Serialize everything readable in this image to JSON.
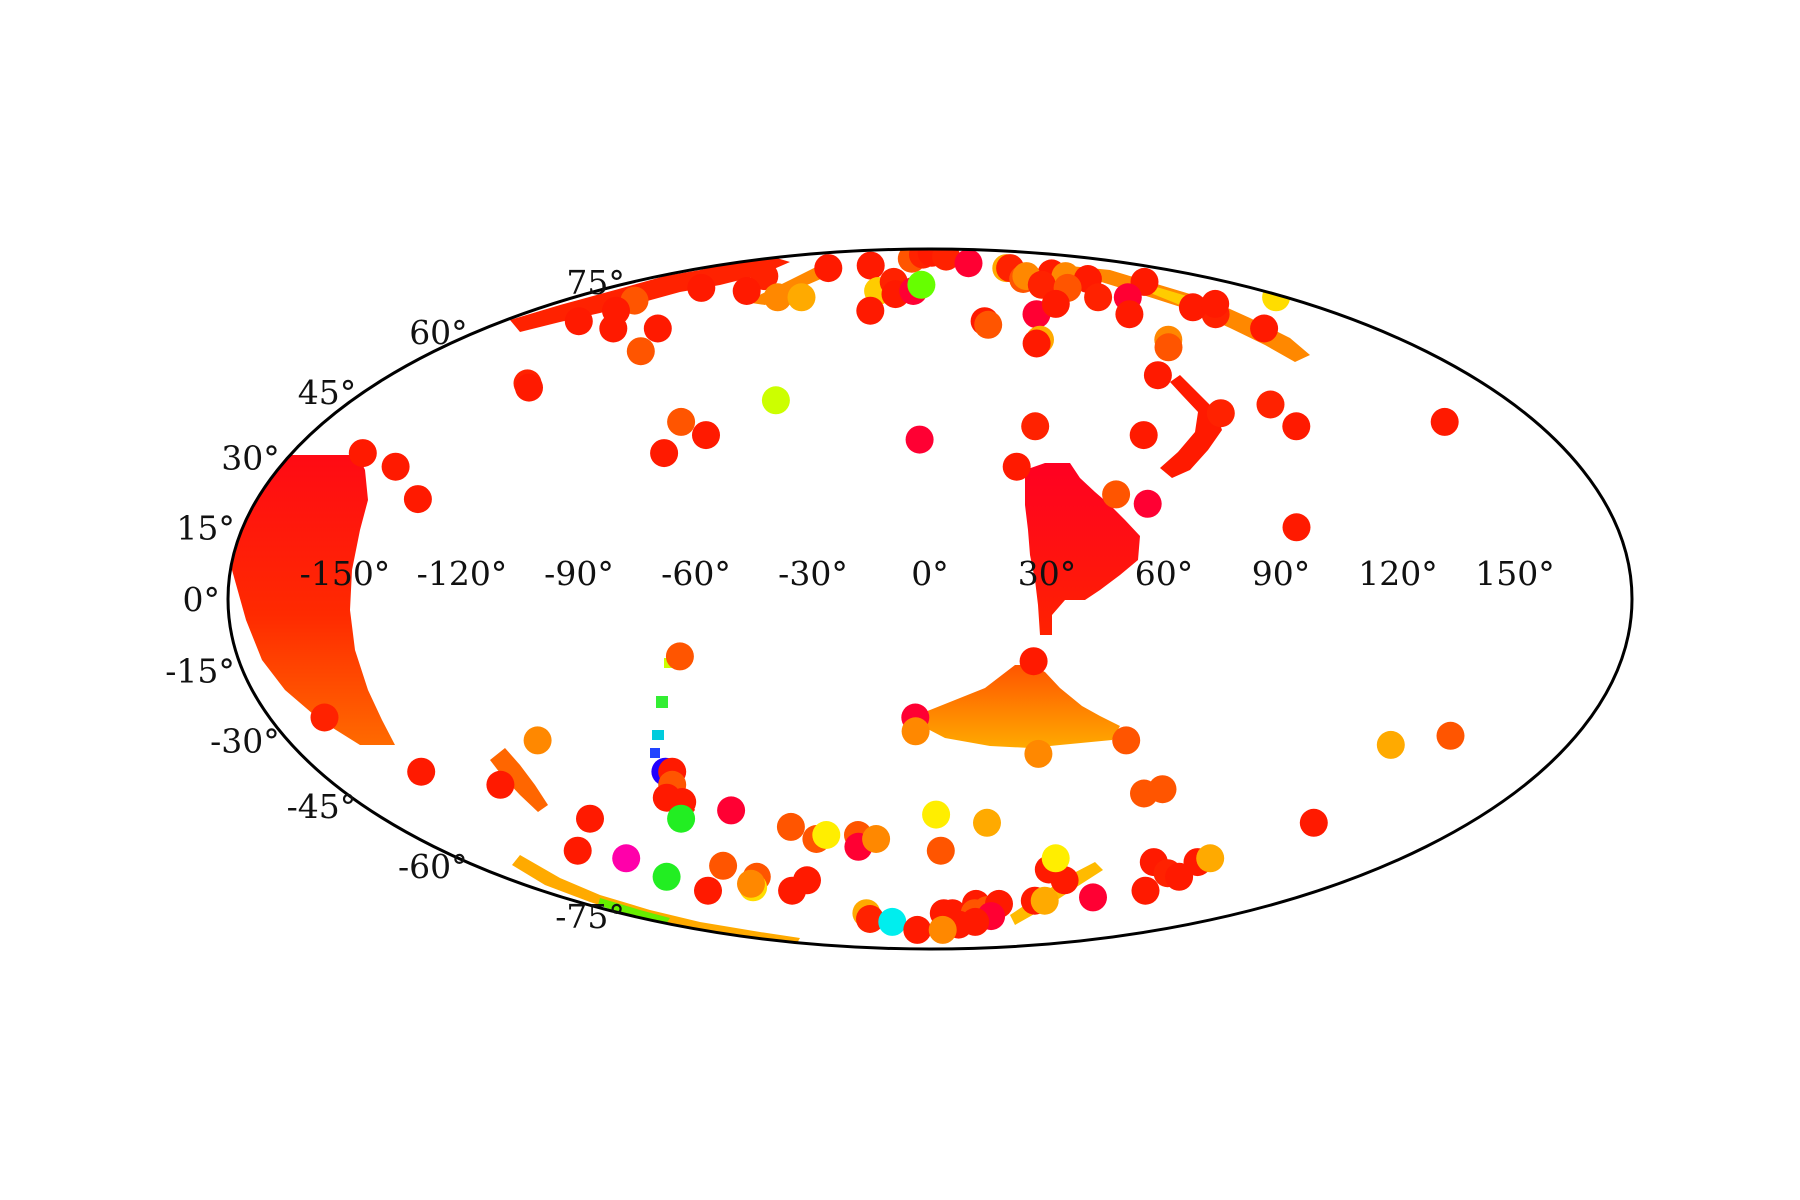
{
  "chart_data": {
    "type": "scatter",
    "projection": "mollweide",
    "title": "",
    "lon_ticks": [
      "-150°",
      "-120°",
      "-90°",
      "-60°",
      "-30°",
      "0°",
      "30°",
      "60°",
      "90°",
      "120°",
      "150°"
    ],
    "lat_ticks": [
      "-75°",
      "-60°",
      "-45°",
      "-30°",
      "-15°",
      "0°",
      "15°",
      "30°",
      "45°",
      "60°",
      "75°"
    ],
    "points": [
      {
        "lon": -145,
        "lat": 69,
        "color": "#ff5500"
      },
      {
        "lon": -142,
        "lat": 66,
        "color": "#ff1a00"
      },
      {
        "lon": -128,
        "lat": 73,
        "color": "#ff1a00"
      },
      {
        "lon": -110,
        "lat": 77,
        "color": "#ff2200"
      },
      {
        "lon": -80,
        "lat": 80,
        "color": "#ff1a00"
      },
      {
        "lon": -50,
        "lat": 81,
        "color": "#ff1a00"
      },
      {
        "lon": -20,
        "lat": 84,
        "color": "#ff5500"
      },
      {
        "lon": -10,
        "lat": 86,
        "color": "#ff2200"
      },
      {
        "lon": 3,
        "lat": 87,
        "color": "#ff1a00"
      },
      {
        "lon": 20,
        "lat": 85,
        "color": "#ff2200"
      },
      {
        "lon": 35,
        "lat": 82,
        "color": "#ff0033"
      },
      {
        "lon": 60,
        "lat": 80,
        "color": "#ffaa00"
      },
      {
        "lon": 63,
        "lat": 80,
        "color": "#ff2200"
      },
      {
        "lon": 85,
        "lat": 78,
        "color": "#ff1a00"
      },
      {
        "lon": 90,
        "lat": 77,
        "color": "#ff8800"
      },
      {
        "lon": 100,
        "lat": 76,
        "color": "#ff1a00"
      },
      {
        "lon": 130,
        "lat": 75,
        "color": "#ff1a00"
      },
      {
        "lon": 175,
        "lat": 70,
        "color": "#ffdd00"
      },
      {
        "lon": -99,
        "lat": 72,
        "color": "#ff1a00"
      },
      {
        "lon": -77,
        "lat": 70,
        "color": "#ff8800"
      },
      {
        "lon": -65,
        "lat": 70,
        "color": "#ffaa00"
      },
      {
        "lon": -28,
        "lat": 72,
        "color": "#ffcc00"
      },
      {
        "lon": -22,
        "lat": 75,
        "color": "#ff2200"
      },
      {
        "lon": -18,
        "lat": 71,
        "color": "#ff1a00"
      },
      {
        "lon": -9,
        "lat": 72,
        "color": "#ff0033"
      },
      {
        "lon": -5,
        "lat": 74,
        "color": "#66ff00"
      },
      {
        "lon": 59,
        "lat": 76,
        "color": "#ff5500"
      },
      {
        "lon": 64,
        "lat": 77,
        "color": "#ff8800"
      },
      {
        "lon": 65,
        "lat": 74,
        "color": "#ff2200"
      },
      {
        "lon": 77,
        "lat": 73,
        "color": "#ff5500"
      },
      {
        "lon": 100,
        "lat": 70,
        "color": "#ff0033"
      },
      {
        "lon": 85,
        "lat": 70,
        "color": "#ff2200"
      },
      {
        "lon": -148,
        "lat": 63,
        "color": "#ff1a00"
      },
      {
        "lon": -128,
        "lat": 61,
        "color": "#ff1a00"
      },
      {
        "lon": -110,
        "lat": 61,
        "color": "#ff1a00"
      },
      {
        "lon": -105,
        "lat": 55,
        "color": "#ff5500"
      },
      {
        "lon": -27,
        "lat": 66,
        "color": "#ff1a00"
      },
      {
        "lon": 23,
        "lat": 63,
        "color": "#ff1a00"
      },
      {
        "lon": 24,
        "lat": 62,
        "color": "#ff5500"
      },
      {
        "lon": 47,
        "lat": 65,
        "color": "#ff0033"
      },
      {
        "lon": 42,
        "lat": 58,
        "color": "#ffaa00"
      },
      {
        "lon": 40,
        "lat": 57,
        "color": "#ff1a00"
      },
      {
        "lon": 60,
        "lat": 68,
        "color": "#ff1a00"
      },
      {
        "lon": 88,
        "lat": 65,
        "color": "#ff1a00"
      },
      {
        "lon": 91,
        "lat": 58,
        "color": "#ff8800"
      },
      {
        "lon": 88,
        "lat": 56,
        "color": "#ff5500"
      },
      {
        "lon": 126,
        "lat": 65,
        "color": "#ff2200"
      },
      {
        "lon": 122,
        "lat": 67,
        "color": "#ff1a00"
      },
      {
        "lon": 136,
        "lat": 68,
        "color": "#ff1a00"
      },
      {
        "lon": 135,
        "lat": 61,
        "color": "#ff1a00"
      },
      {
        "lon": -131,
        "lat": 47,
        "color": "#ff2200"
      },
      {
        "lon": -129,
        "lat": 46,
        "color": "#ff1a00"
      },
      {
        "lon": -48,
        "lat": 43,
        "color": "#ccff00"
      },
      {
        "lon": 76,
        "lat": 49,
        "color": "#ff1a00"
      },
      {
        "lon": 105,
        "lat": 42,
        "color": "#ff2200"
      },
      {
        "lon": 108,
        "lat": 37,
        "color": "#ff1a00"
      },
      {
        "lon": 88,
        "lat": 40,
        "color": "#ff2200"
      },
      {
        "lon": -74,
        "lat": 38,
        "color": "#ff5500"
      },
      {
        "lon": -65,
        "lat": 35,
        "color": "#ff1a00"
      },
      {
        "lon": -75,
        "lat": 31,
        "color": "#ff1a00"
      },
      {
        "lon": -3,
        "lat": 34,
        "color": "#ff0033"
      },
      {
        "lon": 31,
        "lat": 37,
        "color": "#ff2200"
      },
      {
        "lon": 24,
        "lat": 28,
        "color": "#ff1a00"
      },
      {
        "lon": 50,
        "lat": 22,
        "color": "#ff5500"
      },
      {
        "lon": 58,
        "lat": 20,
        "color": "#ff0033"
      },
      {
        "lon": 62,
        "lat": 35,
        "color": "#ff1a00"
      },
      {
        "lon": 96,
        "lat": 15,
        "color": "#ff1a00"
      },
      {
        "lon": 153,
        "lat": 38,
        "color": "#ff1a00"
      },
      {
        "lon": -160,
        "lat": 31,
        "color": "#ff1a00"
      },
      {
        "lon": -148,
        "lat": 28,
        "color": "#ff1a00"
      },
      {
        "lon": -137,
        "lat": 21,
        "color": "#ff1a00"
      },
      {
        "lon": -65,
        "lat": -12,
        "color": "#ff5500"
      },
      {
        "lon": 27,
        "lat": -13,
        "color": "#ff1a00"
      },
      {
        "lon": -4,
        "lat": -25,
        "color": "#ff0033"
      },
      {
        "lon": -4,
        "lat": -28,
        "color": "#ff8800"
      },
      {
        "lon": 31,
        "lat": -33,
        "color": "#ff8800"
      },
      {
        "lon": 55,
        "lat": -30,
        "color": "#ff5500"
      },
      {
        "lon": 130,
        "lat": -31,
        "color": "#ffaa00"
      },
      {
        "lon": 145,
        "lat": -29,
        "color": "#ff5500"
      },
      {
        "lon": -165,
        "lat": -25,
        "color": "#ff2200"
      },
      {
        "lon": -150,
        "lat": -37,
        "color": "#ff1a00"
      },
      {
        "lon": -110,
        "lat": -30,
        "color": "#ff8800"
      },
      {
        "lon": -130,
        "lat": -40,
        "color": "#ff1a00"
      },
      {
        "lon": -112,
        "lat": -48,
        "color": "#ff1a00"
      },
      {
        "lon": -78,
        "lat": -37,
        "color": "#2200ff"
      },
      {
        "lon": -76,
        "lat": -37,
        "color": "#ff1a00"
      },
      {
        "lon": -78,
        "lat": -40,
        "color": "#ff5500"
      },
      {
        "lon": -82,
        "lat": -43,
        "color": "#ff1a00"
      },
      {
        "lon": -78,
        "lat": -44,
        "color": "#ff1a00"
      },
      {
        "lon": -64,
        "lat": -46,
        "color": "#ff0033"
      },
      {
        "lon": -82,
        "lat": -48,
        "color": "#22ee22"
      },
      {
        "lon": 66,
        "lat": -42,
        "color": "#ff5500"
      },
      {
        "lon": 71,
        "lat": -41,
        "color": "#ff5500"
      },
      {
        "lon": 2,
        "lat": -47,
        "color": "#ffee00"
      },
      {
        "lon": 19,
        "lat": -49,
        "color": "#ffaa00"
      },
      {
        "lon": -47,
        "lat": -50,
        "color": "#ff5500"
      },
      {
        "lon": -40,
        "lat": -53,
        "color": "#ff5500"
      },
      {
        "lon": -36,
        "lat": -52,
        "color": "#ffee00"
      },
      {
        "lon": -25,
        "lat": -52,
        "color": "#ff5500"
      },
      {
        "lon": -26,
        "lat": -55,
        "color": "#ff0033"
      },
      {
        "lon": -19,
        "lat": -53,
        "color": "#ff8800"
      },
      {
        "lon": 4,
        "lat": -56,
        "color": "#ff5500"
      },
      {
        "lon": 128,
        "lat": -49,
        "color": "#ff1a00"
      },
      {
        "lon": -130,
        "lat": -56,
        "color": "#ff1a00"
      },
      {
        "lon": -116,
        "lat": -58,
        "color": "#ff00aa"
      },
      {
        "lon": -111,
        "lat": -63,
        "color": "#22ee22"
      },
      {
        "lon": -82,
        "lat": -60,
        "color": "#ff5500"
      },
      {
        "lon": -73,
        "lat": -63,
        "color": "#ff5500"
      },
      {
        "lon": -80,
        "lat": -66,
        "color": "#ffdd00"
      },
      {
        "lon": -79,
        "lat": -65,
        "color": "#ff8800"
      },
      {
        "lon": -64,
        "lat": -67,
        "color": "#ff1a00"
      },
      {
        "lon": -53,
        "lat": -64,
        "color": "#ff1a00"
      },
      {
        "lon": 48,
        "lat": -61,
        "color": "#ff1a00"
      },
      {
        "lon": 58,
        "lat": -64,
        "color": "#ff1a00"
      },
      {
        "lon": 48,
        "lat": -58,
        "color": "#ffee00"
      },
      {
        "lon": 87,
        "lat": -59,
        "color": "#ff1a00"
      },
      {
        "lon": 98,
        "lat": -62,
        "color": "#ff2200"
      },
      {
        "lon": 104,
        "lat": -59,
        "color": "#ff1a00"
      },
      {
        "lon": 107,
        "lat": -58,
        "color": "#ffaa00"
      },
      {
        "lon": 105,
        "lat": -63,
        "color": "#ff1a00"
      },
      {
        "lon": 100,
        "lat": -67,
        "color": "#ff1a00"
      },
      {
        "lon": 80,
        "lat": -69,
        "color": "#ff0033"
      },
      {
        "lon": -103,
        "lat": -67,
        "color": "#ff1a00"
      },
      {
        "lon": -37,
        "lat": -74,
        "color": "#ffaa00"
      },
      {
        "lon": -38,
        "lat": -76,
        "color": "#ff2200"
      },
      {
        "lon": -25,
        "lat": -77,
        "color": "#00eeee"
      },
      {
        "lon": -10,
        "lat": -80,
        "color": "#ff1a00"
      },
      {
        "lon": 8,
        "lat": -74,
        "color": "#ff1a00"
      },
      {
        "lon": 13,
        "lat": -74,
        "color": "#ff1a00"
      },
      {
        "lon": 24,
        "lat": -71,
        "color": "#ff1a00"
      },
      {
        "lon": 26,
        "lat": -74,
        "color": "#ff5500"
      },
      {
        "lon": 32,
        "lat": -73,
        "color": "#ff5500"
      },
      {
        "lon": 36,
        "lat": -71,
        "color": "#ff1a00"
      },
      {
        "lon": 37,
        "lat": -75,
        "color": "#ff0033"
      },
      {
        "lon": 53,
        "lat": -70,
        "color": "#ff1a00"
      },
      {
        "lon": 58,
        "lat": -70,
        "color": "#ffaa00"
      },
      {
        "lon": 30,
        "lat": -77,
        "color": "#ff1a00"
      },
      {
        "lon": 20,
        "lat": -78,
        "color": "#ff1a00"
      },
      {
        "lon": 10,
        "lat": -80,
        "color": "#ff8800"
      }
    ],
    "regions": [
      {
        "name": "west-limb-patch",
        "color_top": "#ff0a14",
        "color_bottom": "#ff6a00",
        "lon_west": -180,
        "lat_from": -38,
        "lat_to": 30
      },
      {
        "name": "north-africa-patch",
        "color_top": "#ff0022",
        "color_bottom": "#ff2200",
        "lon_west": 22,
        "lat_from": -3,
        "lat_to": 32
      },
      {
        "name": "south-atlantic-patch",
        "color_top": "#ff5500",
        "color_bottom": "#ffaa00",
        "lon_west": 0,
        "lat_from": -33,
        "lat_to": -15
      }
    ],
    "bands": [
      {
        "name": "north-arc-west",
        "color": "#ff2200",
        "lon_from": -150,
        "lon_to": -75,
        "lat_from": 66,
        "lat_to": 79
      },
      {
        "name": "north-arc-east",
        "color": "#ff8800",
        "lon_from": 62,
        "lon_to": 140,
        "lat_from": 79,
        "lat_to": 67
      },
      {
        "name": "south-arc-west",
        "color": "#ffaa00",
        "lon_from": -115,
        "lon_to": -30,
        "lat_from": -60,
        "lat_to": -75
      },
      {
        "name": "south-arc-east",
        "color": "#ffbb00",
        "lon_from": 28,
        "lon_to": 52,
        "lat_from": -74,
        "lat_to": -58
      }
    ]
  }
}
